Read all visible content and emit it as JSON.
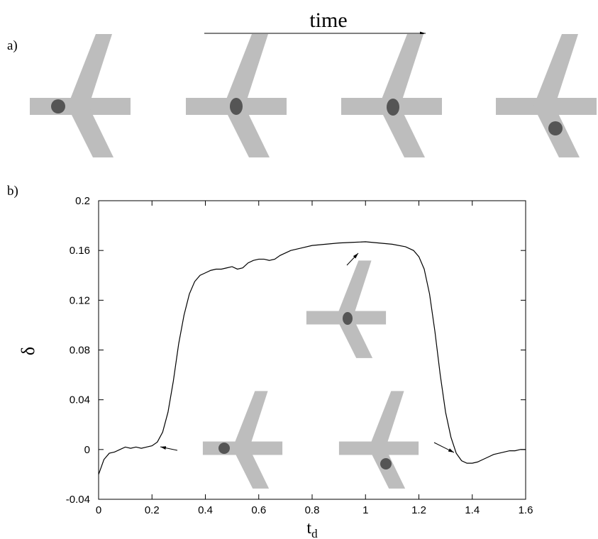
{
  "panel_a": {
    "label": "a)",
    "arrow_label": "time"
  },
  "chart_data": {
    "type": "line",
    "label": "b)",
    "ylabel": "δ",
    "xlabel": "t",
    "xlabel_subscript": "d",
    "color": "#000000",
    "x": [
      0,
      0.02,
      0.04,
      0.06,
      0.08,
      0.1,
      0.12,
      0.14,
      0.16,
      0.18,
      0.2,
      0.22,
      0.24,
      0.26,
      0.28,
      0.3,
      0.32,
      0.34,
      0.36,
      0.38,
      0.4,
      0.42,
      0.44,
      0.46,
      0.48,
      0.5,
      0.52,
      0.54,
      0.56,
      0.58,
      0.6,
      0.62,
      0.64,
      0.66,
      0.68,
      0.7,
      0.72,
      0.76,
      0.8,
      0.85,
      0.9,
      0.95,
      1.0,
      1.05,
      1.1,
      1.15,
      1.18,
      1.2,
      1.22,
      1.24,
      1.26,
      1.28,
      1.3,
      1.32,
      1.34,
      1.36,
      1.38,
      1.4,
      1.42,
      1.44,
      1.46,
      1.48,
      1.5,
      1.52,
      1.54,
      1.56,
      1.58,
      1.6
    ],
    "values": [
      -0.02,
      -0.008,
      -0.003,
      -0.002,
      0.0,
      0.002,
      0.001,
      0.002,
      0.001,
      0.002,
      0.003,
      0.006,
      0.014,
      0.03,
      0.055,
      0.085,
      0.108,
      0.125,
      0.135,
      0.14,
      0.142,
      0.144,
      0.145,
      0.145,
      0.146,
      0.147,
      0.145,
      0.146,
      0.15,
      0.152,
      0.153,
      0.153,
      0.152,
      0.153,
      0.156,
      0.158,
      0.16,
      0.162,
      0.164,
      0.165,
      0.166,
      0.1665,
      0.167,
      0.166,
      0.165,
      0.163,
      0.16,
      0.155,
      0.145,
      0.125,
      0.095,
      0.06,
      0.03,
      0.01,
      -0.003,
      -0.009,
      -0.011,
      -0.011,
      -0.01,
      -0.008,
      -0.006,
      -0.004,
      -0.003,
      -0.002,
      -0.001,
      -0.001,
      0.0,
      0.0
    ],
    "xlim": [
      0,
      1.6
    ],
    "ylim": [
      -0.04,
      0.2
    ],
    "xticks": [
      0,
      0.2,
      0.4,
      0.6,
      0.8,
      1,
      1.2,
      1.4,
      1.6
    ],
    "yticks": [
      -0.04,
      0,
      0.04,
      0.08,
      0.12,
      0.16,
      0.2
    ]
  }
}
